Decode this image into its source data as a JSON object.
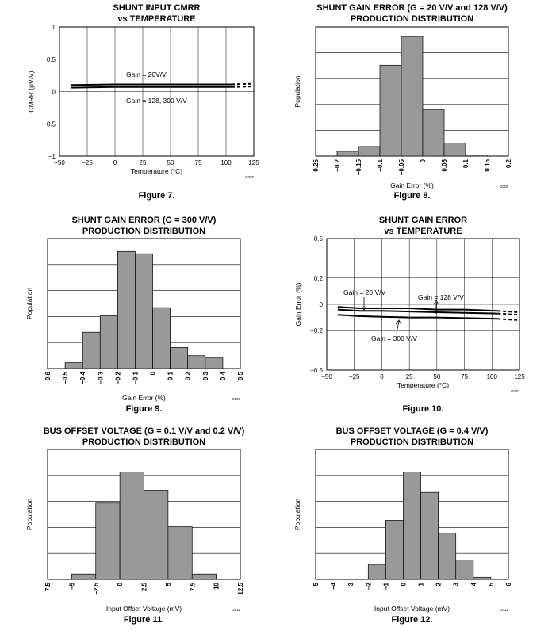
{
  "figures": [
    {
      "caption": "Figure 7.",
      "code": "G007",
      "chart_data": {
        "type": "line",
        "title": [
          "SHUNT INPUT CMRR",
          "vs TEMPERATURE"
        ],
        "xlabel": "Temperature (°C)",
        "ylabel": "CMRR (μV/V)",
        "xlim": [
          -50,
          125
        ],
        "ylim": [
          -1,
          1
        ],
        "xticks": [
          "−50",
          "−25",
          "0",
          "25",
          "50",
          "75",
          "100",
          "125"
        ],
        "yticks": [
          "1",
          "0.5",
          "0",
          "−0.5",
          "−1"
        ],
        "grid": true,
        "series": [
          {
            "name": "Gain = 20V/V",
            "x": [
              -40,
              0,
              50,
              105,
              125
            ],
            "y": [
              0.1,
              0.11,
              0.11,
              0.11,
              0.12
            ]
          },
          {
            "name": "Gain = 128, 300 V/V",
            "x": [
              -40,
              0,
              50,
              105,
              125
            ],
            "y": [
              0.06,
              0.07,
              0.07,
              0.07,
              0.08
            ]
          }
        ],
        "annotations": [
          "Gain = 20V/V",
          "Gain = 128, 300 V/V"
        ]
      }
    },
    {
      "caption": "Figure 8.",
      "code": "G008",
      "chart_data": {
        "type": "bar",
        "title": [
          "SHUNT GAIN ERROR (G = 20 V/V and 128 V/V)",
          "PRODUCTION DISTRIBUTION"
        ],
        "xlabel": "Gain Error (%)",
        "ylabel": "Population",
        "xticks": [
          "−0.25",
          "−0.2",
          "−0.15",
          "−0.1",
          "−0.05",
          "0",
          "0.05",
          "0.1",
          "0.15",
          "0.2"
        ],
        "values": [
          0,
          0.04,
          0.08,
          0.76,
          1.0,
          0.39,
          0.11,
          0.01,
          0
        ],
        "ylim": [
          0,
          1.08
        ],
        "grid": true
      }
    },
    {
      "caption": "Figure 9.",
      "code": "G009",
      "chart_data": {
        "type": "bar",
        "title": [
          "SHUNT GAIN ERROR (G = 300 V/V)",
          "PRODUCTION DISTRIBUTION"
        ],
        "xlabel": "Gain Error (%)",
        "ylabel": "Population",
        "xticks": [
          "−0.6",
          "−0.5",
          "−0.4",
          "−0.3",
          "−0.2",
          "−0.1",
          "0",
          "0.1",
          "0.2",
          "0.3",
          "0.4",
          "0.5"
        ],
        "values": [
          0,
          0.05,
          0.31,
          0.45,
          1.0,
          0.98,
          0.52,
          0.18,
          0.11,
          0.09,
          0
        ],
        "ylim": [
          0,
          1.11
        ],
        "grid": true
      }
    },
    {
      "caption": "Figure 10.",
      "code": "G010",
      "chart_data": {
        "type": "line",
        "title": [
          "SHUNT GAIN ERROR",
          "vs TEMPERATURE"
        ],
        "xlabel": "Temperature (°C)",
        "ylabel": "Gain Error (%)",
        "xlim": [
          -50,
          125
        ],
        "ylim": [
          -0.5,
          0.5
        ],
        "xticks": [
          "−50",
          "−25",
          "0",
          "25",
          "50",
          "75",
          "100",
          "125"
        ],
        "yticks": [
          "0.5",
          "0.2",
          "0",
          "−0.2",
          "−0.5"
        ],
        "grid": true,
        "series": [
          {
            "name": "Gain = 20 V/V",
            "x": [
              -40,
              -20,
              0,
              25,
              50,
              75,
              105,
              125
            ],
            "y": [
              -0.02,
              -0.03,
              -0.03,
              -0.03,
              -0.04,
              -0.04,
              -0.05,
              -0.06
            ]
          },
          {
            "name": "Gain = 128 V/V",
            "x": [
              -40,
              -20,
              0,
              25,
              50,
              75,
              105,
              125
            ],
            "y": [
              -0.04,
              -0.05,
              -0.05,
              -0.055,
              -0.06,
              -0.065,
              -0.07,
              -0.08
            ]
          },
          {
            "name": "Gain = 300 V/V",
            "x": [
              -40,
              -20,
              0,
              25,
              50,
              75,
              105,
              125
            ],
            "y": [
              -0.08,
              -0.09,
              -0.095,
              -0.1,
              -0.1,
              -0.105,
              -0.11,
              -0.12
            ]
          }
        ],
        "annotations": [
          "Gain = 20 V/V",
          "Gain = 128 V/V",
          "Gain = 300 V/V"
        ]
      }
    },
    {
      "caption": "Figure 11.",
      "code": "G011",
      "chart_data": {
        "type": "bar",
        "title": [
          "BUS OFFSET VOLTAGE (G = 0.1 V/V and 0.2 V/V)",
          "PRODUCTION DISTRIBUTION"
        ],
        "xlabel": "Input Offset Voltage (mV)",
        "ylabel": "Population",
        "xticks": [
          "−7.5",
          "−5",
          "−2.5",
          "0",
          "2.5",
          "5",
          "7.5",
          "10",
          "12.5"
        ],
        "values": [
          0,
          0.05,
          0.71,
          1.0,
          0.83,
          0.49,
          0.05,
          0
        ],
        "ylim": [
          0,
          1.21
        ],
        "grid": true
      }
    },
    {
      "caption": "Figure 12.",
      "code": "G012",
      "chart_data": {
        "type": "bar",
        "title": [
          "BUS OFFSET VOLTAGE (G = 0.4 V/V)",
          "PRODUCTION DISTRIBUTION"
        ],
        "xlabel": "Input Offset Voltage (mV)",
        "ylabel": "Population",
        "xticks": [
          "−5",
          "−4",
          "−3",
          "−2",
          "−1",
          "0",
          "1",
          "2",
          "3",
          "4",
          "5",
          "6"
        ],
        "values": [
          0,
          0,
          0,
          0.14,
          0.55,
          1.0,
          0.81,
          0.43,
          0.18,
          0.02,
          0
        ],
        "ylim": [
          0,
          1.21
        ],
        "grid": true
      }
    }
  ]
}
